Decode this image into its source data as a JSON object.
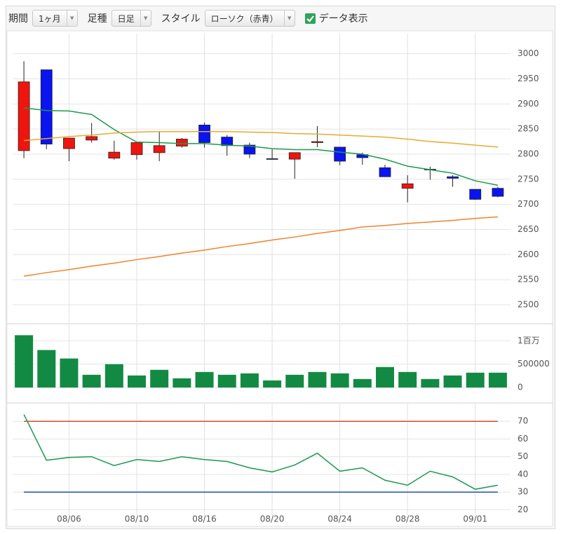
{
  "toolbar": {
    "period_label": "期間",
    "period_value": "1ヶ月",
    "candle_label": "足種",
    "candle_value": "日足",
    "style_label": "スタイル",
    "style_value": "ローソク（赤青）",
    "data_display_label": "データ表示",
    "data_display_checked": true
  },
  "chart_data": [
    {
      "type": "candlestick",
      "categories": [
        null,
        null,
        "08/06",
        null,
        null,
        "08/10",
        null,
        null,
        "08/16",
        null,
        null,
        "08/20",
        null,
        null,
        "08/24",
        null,
        null,
        "08/28",
        null,
        null,
        "09/01",
        null
      ],
      "open": [
        2807,
        2968,
        2811,
        2828,
        2792,
        2799,
        2803,
        2816,
        2858,
        2834,
        2818,
        2791,
        2790,
        2823,
        2814,
        2799,
        2773,
        2732,
        2770,
        2755,
        2730,
        2732
      ],
      "high": [
        2985,
        2968,
        2832,
        2862,
        2827,
        2823,
        2845,
        2832,
        2863,
        2838,
        2823,
        2810,
        2803,
        2856,
        2814,
        2803,
        2779,
        2758,
        2775,
        2758,
        2730,
        2735
      ],
      "low": [
        2792,
        2810,
        2786,
        2823,
        2789,
        2789,
        2786,
        2813,
        2813,
        2797,
        2792,
        2790,
        2751,
        2814,
        2778,
        2779,
        2755,
        2704,
        2749,
        2735,
        2709,
        2714
      ],
      "close": [
        2944,
        2820,
        2832,
        2835,
        2804,
        2823,
        2817,
        2830,
        2823,
        2817,
        2800,
        2790,
        2803,
        2825,
        2786,
        2793,
        2755,
        2741,
        2769,
        2752,
        2710,
        2716
      ],
      "up_color": "#f0140f",
      "down_color": "#0a14f0",
      "series": [
        {
          "color": "#1a9a4a",
          "values": [
            2892,
            2887,
            2886,
            2879,
            2849,
            2824,
            2823,
            2821,
            2821,
            2818,
            2816,
            2811,
            2809,
            2809,
            2804,
            2800,
            2790,
            2776,
            2769,
            2762,
            2747,
            2738
          ]
        },
        {
          "color": "#e8aa30",
          "values": [
            2827,
            2831,
            2835,
            2838,
            2842,
            2844,
            2845,
            2845,
            2845,
            2845,
            2844,
            2843,
            2841,
            2840,
            2838,
            2836,
            2834,
            2830,
            2825,
            2822,
            2818,
            2814
          ]
        },
        {
          "color": "#f0822d",
          "values": [
            2557,
            2564,
            2570,
            2577,
            2583,
            2590,
            2596,
            2603,
            2609,
            2616,
            2622,
            2629,
            2635,
            2642,
            2648,
            2655,
            2658,
            2662,
            2665,
            2668,
            2672,
            2675
          ]
        }
      ],
      "ylim": [
        2465,
        3040
      ],
      "yticks": [
        2500,
        2550,
        2600,
        2650,
        2700,
        2750,
        2800,
        2850,
        2900,
        2950,
        3000
      ],
      "grid": true
    },
    {
      "type": "bar",
      "color": "#138a43",
      "values": [
        1120000,
        803000,
        621000,
        273000,
        500000,
        258000,
        379000,
        197000,
        333000,
        273000,
        303000,
        152000,
        273000,
        333000,
        303000,
        182000,
        439000,
        333000,
        182000,
        258000,
        318000,
        318000
      ],
      "ylim": [
        0,
        1350000
      ],
      "yticks": [
        0,
        500000,
        {
          "value": 1000000,
          "label": "1百万"
        }
      ],
      "grid": true
    },
    {
      "type": "line",
      "series": [
        {
          "color": "#1a9a4a",
          "values": [
            73.9,
            48,
            49.6,
            50,
            45,
            48.4,
            47.3,
            50,
            48.4,
            47.3,
            43.7,
            41.4,
            45.3,
            52,
            41.8,
            43.7,
            36.7,
            33.9,
            41.8,
            38.6,
            31.6,
            33.9
          ]
        }
      ],
      "levels": [
        {
          "value": 70,
          "color": "#e0462e"
        },
        {
          "value": 30,
          "color": "#1f4fb4"
        }
      ],
      "ylim": [
        17,
        80
      ],
      "yticks": [
        20,
        30,
        40,
        50,
        60,
        70
      ],
      "grid": true
    }
  ]
}
